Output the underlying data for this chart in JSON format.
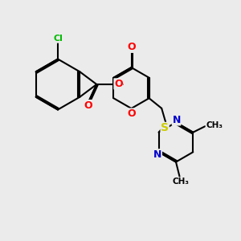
{
  "background_color": "#ebebeb",
  "bond_color": "#000000",
  "bond_width": 1.5,
  "dbo": 0.06,
  "atom_colors": {
    "O": "#ff0000",
    "N": "#0000cc",
    "S": "#cccc00",
    "Cl": "#00bb00"
  },
  "figsize": [
    3.0,
    3.0
  ],
  "dpi": 100,
  "xlim": [
    0.0,
    10.0
  ],
  "ylim": [
    0.5,
    10.5
  ]
}
